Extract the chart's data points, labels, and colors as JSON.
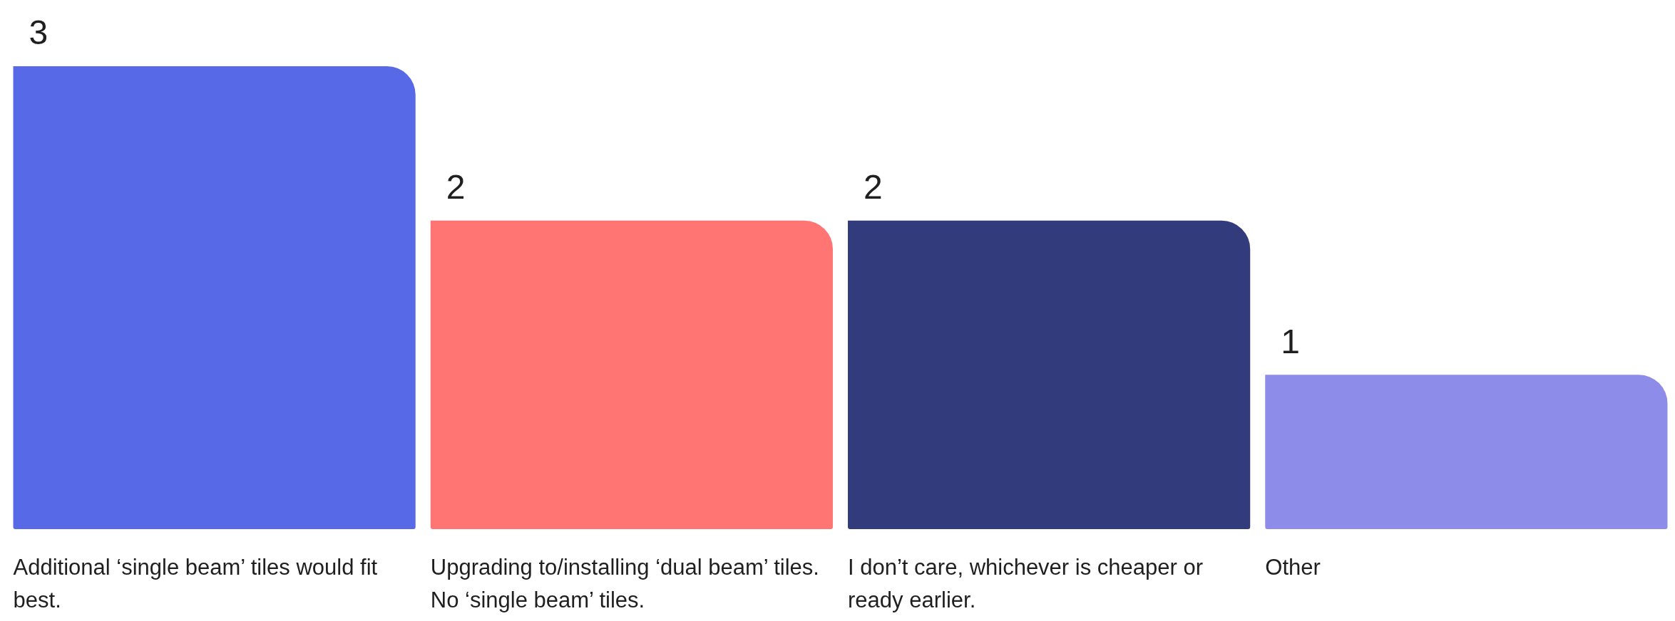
{
  "chart_data": {
    "type": "bar",
    "categories": [
      "Additional ‘single beam’ tiles would fit best.",
      "Upgrading to/installing ‘dual beam’ tiles. No ‘single beam’ tiles.",
      "I don’t care, whichever is cheaper or ready earlier.",
      "Other"
    ],
    "values": [
      3,
      2,
      2,
      1
    ],
    "colors": [
      "#5769e7",
      "#ff7573",
      "#323b7b",
      "#8e8ce9"
    ],
    "data_labels": true
  }
}
